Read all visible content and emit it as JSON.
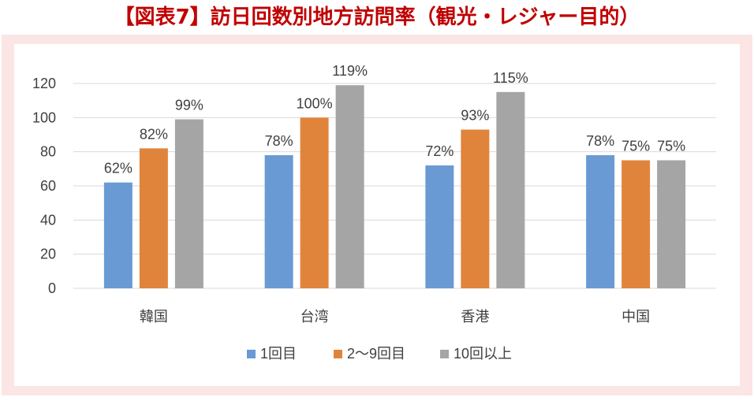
{
  "title": "【図表7】訪日回数別地方訪問率（観光・レジャー目的）",
  "colors": {
    "title": "#c00000",
    "frame": "#fbe5e5",
    "series": [
      "#6a9ad4",
      "#e0843c",
      "#a5a5a5"
    ],
    "grid": "#d9d9d9",
    "text": "#404040"
  },
  "chart_data": {
    "type": "bar",
    "categories": [
      "韓国",
      "台湾",
      "香港",
      "中国"
    ],
    "series": [
      {
        "name": "1回目",
        "values": [
          62,
          78,
          72,
          78
        ],
        "labels": [
          "62%",
          "78%",
          "72%",
          "78%"
        ]
      },
      {
        "name": "2～9回目",
        "values": [
          82,
          100,
          93,
          75
        ],
        "labels": [
          "82%",
          "100%",
          "93%",
          "75%"
        ]
      },
      {
        "name": "10回以上",
        "values": [
          99,
          119,
          115,
          75
        ],
        "labels": [
          "99%",
          "119%",
          "115%",
          "75%"
        ]
      }
    ],
    "ylim": [
      0,
      120
    ],
    "yticks": [
      "0",
      "20",
      "40",
      "60",
      "80",
      "100",
      "120"
    ],
    "grid": true,
    "legend_position": "bottom"
  }
}
